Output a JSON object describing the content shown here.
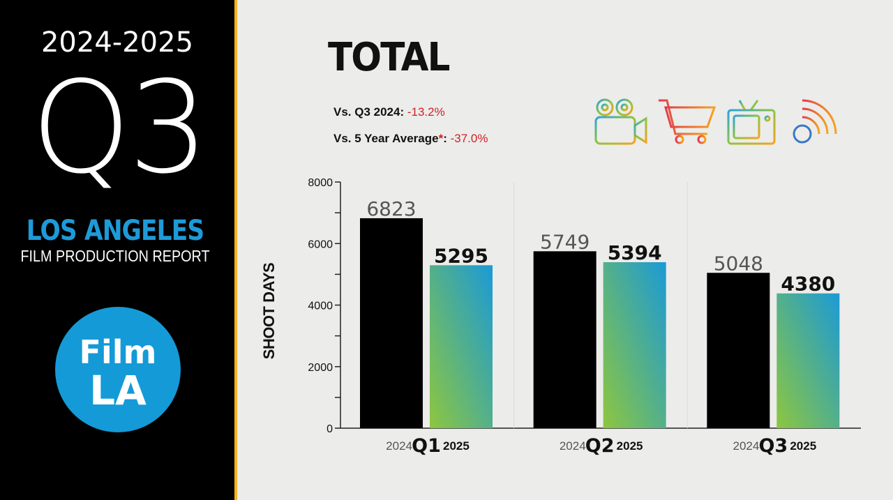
{
  "sidebar": {
    "years": "2024-2025",
    "quarter": "Q3",
    "city": "LOS ANGELES",
    "report": "FILM PRODUCTION REPORT",
    "logo_line1": "Film",
    "logo_line2": "LA",
    "accent": "#f5b21c",
    "brand_blue": "#149ad7"
  },
  "header": {
    "title": "TOTAL",
    "stat1_label": "Vs. Q3 2024: ",
    "stat1_value": "-13.2%",
    "stat2_label": "Vs. 5 Year Average",
    "stat2_star": "*",
    "stat2_colon": ": ",
    "stat2_value": "-37.0%",
    "negative_color": "#d21f26"
  },
  "icons": [
    "film-camera-icon",
    "shopping-cart-icon",
    "television-icon",
    "broadcast-signal-icon"
  ],
  "chart_data": {
    "type": "bar",
    "title": "TOTAL",
    "ylabel": "SHOOT DAYS",
    "ylim": [
      0,
      8000
    ],
    "yticks": [
      0,
      2000,
      4000,
      6000,
      8000
    ],
    "categories": [
      "Q1",
      "Q2",
      "Q3"
    ],
    "series": [
      {
        "name": "2024",
        "values": [
          6823,
          5749,
          5048
        ],
        "color": "#000000"
      },
      {
        "name": "2025",
        "values": [
          5295,
          5394,
          4380
        ],
        "color": "gradient-green-blue"
      }
    ],
    "grid": false,
    "legend": "none"
  }
}
